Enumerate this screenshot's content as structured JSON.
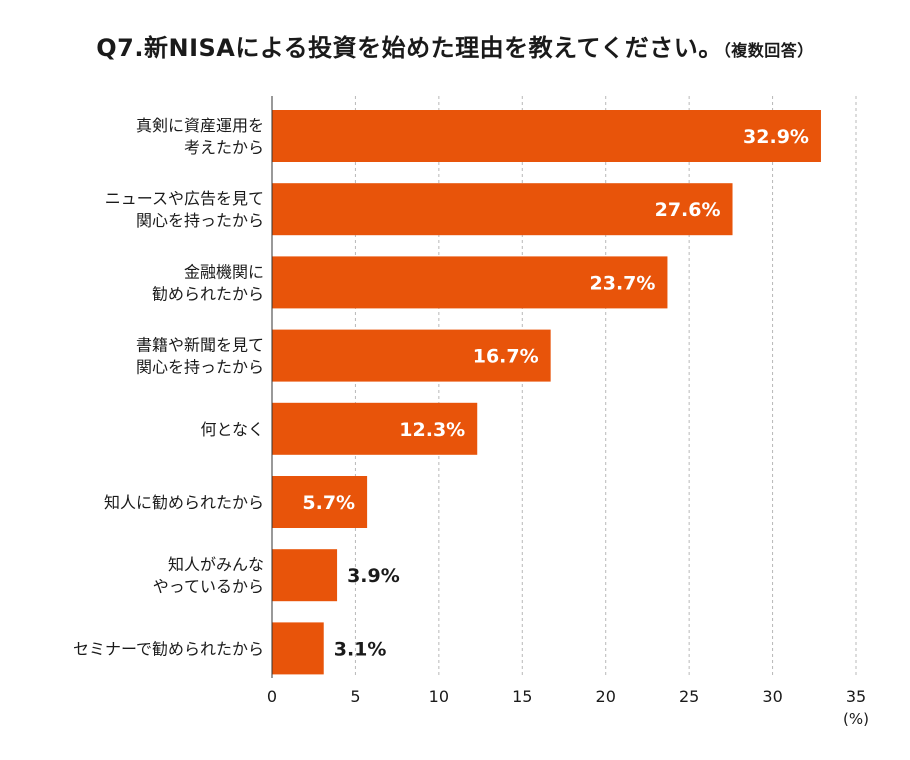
{
  "chart_data": {
    "type": "bar",
    "orientation": "horizontal",
    "title": "Q7.新NISAによる投資を始めた理由を教えてください。",
    "subtitle": "（複数回答）",
    "categories": [
      [
        "真剣に資産運用を",
        "考えたから"
      ],
      [
        "ニュースや広告を見て",
        "関心を持ったから"
      ],
      [
        "金融機関に",
        "勧められたから"
      ],
      [
        "書籍や新聞を見て",
        "関心を持ったから"
      ],
      [
        "何となく"
      ],
      [
        "知人に勧められたから"
      ],
      [
        "知人がみんな",
        "やっているから"
      ],
      [
        "セミナーで勧められたから"
      ]
    ],
    "values": [
      32.9,
      27.6,
      23.7,
      16.7,
      12.3,
      5.7,
      3.9,
      3.1
    ],
    "value_labels": [
      "32.9%",
      "27.6%",
      "23.7%",
      "16.7%",
      "12.3%",
      "5.7%",
      "3.9%",
      "3.1%"
    ],
    "xlim": [
      0,
      35
    ],
    "xticks": [
      0,
      5,
      10,
      15,
      20,
      25,
      30,
      35
    ],
    "xunit": "(%)",
    "grid": "vertical dashed",
    "bar_color": "#E8540A"
  }
}
